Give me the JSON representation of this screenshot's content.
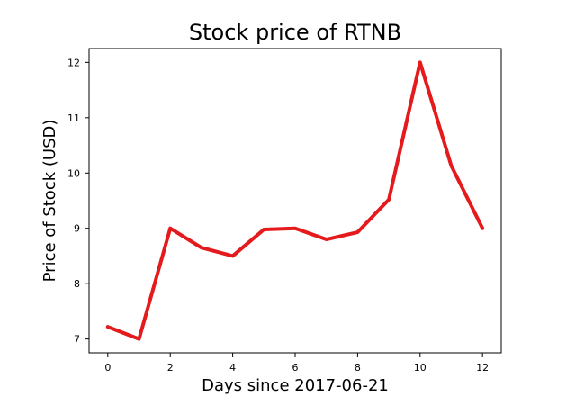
{
  "chart_data": {
    "type": "line",
    "title": "Stock price of RTNB",
    "xlabel": "Days since 2017-06-21",
    "ylabel": "Price of Stock (USD)",
    "x": [
      0,
      1,
      2,
      3,
      4,
      5,
      6,
      7,
      8,
      9,
      10,
      11,
      12
    ],
    "series": [
      {
        "values": [
          7.22,
          7.0,
          9.0,
          8.65,
          8.5,
          8.98,
          9.0,
          8.8,
          8.93,
          9.52,
          12.0,
          10.13,
          9.0
        ],
        "color": "#e41a1c"
      }
    ],
    "xlim": [
      -0.6,
      12.6
    ],
    "ylim": [
      6.75,
      12.25
    ],
    "xticks": [
      0,
      2,
      4,
      6,
      8,
      10,
      12
    ],
    "yticks": [
      7,
      8,
      9,
      10,
      11,
      12
    ],
    "grid": false,
    "legend": "none"
  }
}
